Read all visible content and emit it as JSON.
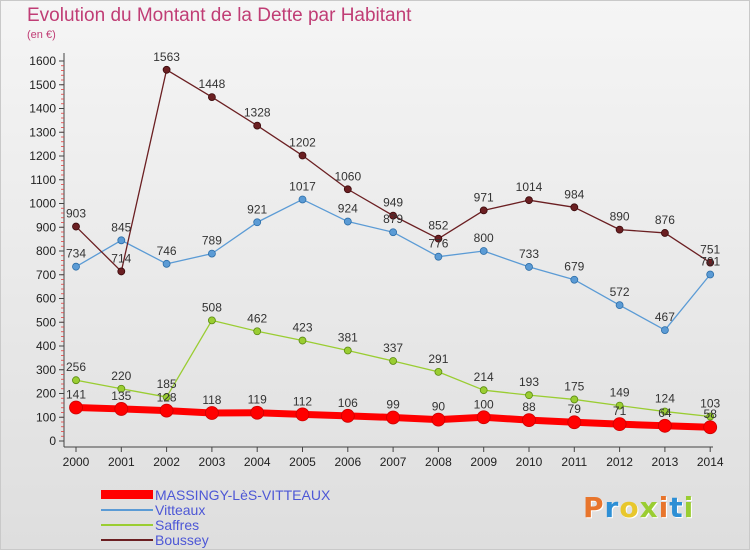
{
  "header": {
    "title": "Evolution du Montant de la Dette par Habitant",
    "subtitle": "(en €)"
  },
  "logo": {
    "letters": [
      "P",
      "r",
      "o",
      "x",
      "i",
      "t",
      "i"
    ],
    "colors": [
      "#e8752c",
      "#2d8fd5",
      "#e8c72c",
      "#9acd32",
      "#e8752c",
      "#2d8fd5",
      "#9acd32"
    ]
  },
  "chart_data": {
    "type": "line",
    "title": "Evolution du Montant de la Dette par Habitant",
    "subtitle": "(en €)",
    "x": [
      "2000",
      "2001",
      "2002",
      "2003",
      "2004",
      "2005",
      "2006",
      "2007",
      "2008",
      "2009",
      "2010",
      "2011",
      "2012",
      "2013",
      "2014"
    ],
    "ylim": [
      0,
      1600
    ],
    "yticks": [
      0,
      100,
      200,
      300,
      400,
      500,
      600,
      700,
      800,
      900,
      1000,
      1100,
      1200,
      1300,
      1400,
      1500,
      1600
    ],
    "grid": false,
    "legend": "bottom-left",
    "series": [
      {
        "name": "MASSINGY-LèS-VITTEAUX",
        "color": "#ff0000",
        "values": [
          141,
          135,
          128,
          118,
          119,
          112,
          106,
          99,
          90,
          100,
          88,
          79,
          71,
          64,
          58
        ]
      },
      {
        "name": "Vitteaux",
        "color": "#5b9bd5",
        "values": [
          734,
          845,
          746,
          789,
          921,
          1017,
          924,
          879,
          776,
          800,
          733,
          679,
          572,
          467,
          701
        ]
      },
      {
        "name": "Saffres",
        "color": "#9acd32",
        "values": [
          256,
          220,
          185,
          508,
          462,
          423,
          381,
          337,
          291,
          214,
          193,
          175,
          149,
          124,
          103
        ]
      },
      {
        "name": "Boussey",
        "color": "#6b1f22",
        "values": [
          903,
          714,
          1563,
          1448,
          1328,
          1202,
          1060,
          949,
          852,
          971,
          1014,
          984,
          890,
          876,
          751
        ]
      }
    ]
  }
}
